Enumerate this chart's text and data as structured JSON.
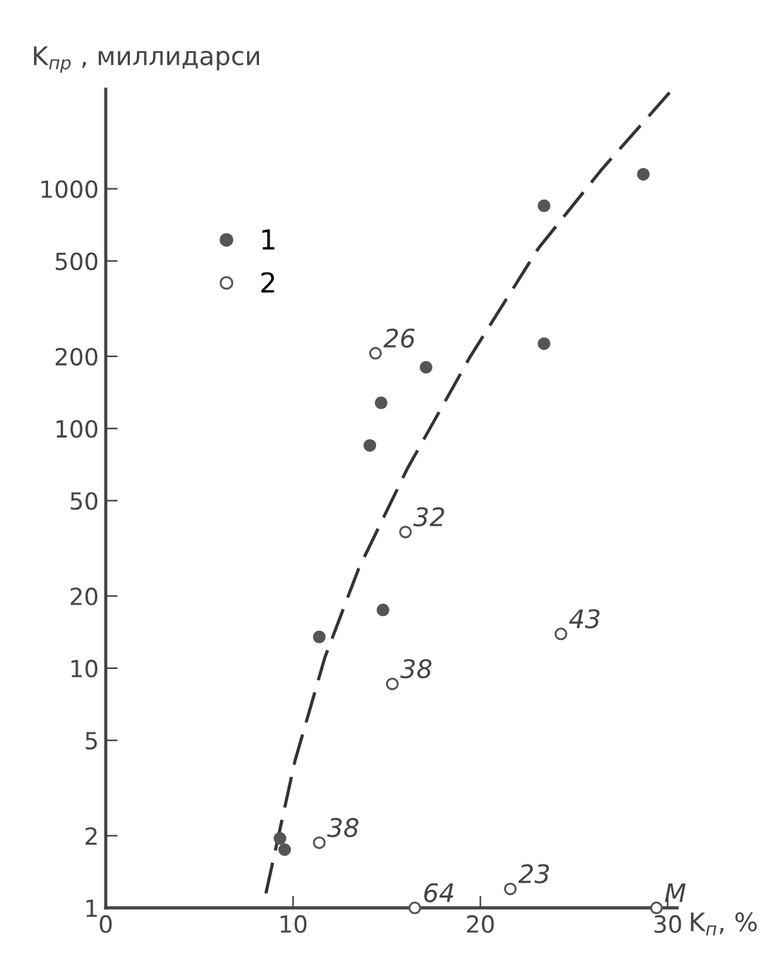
{
  "chart_data": {
    "type": "scatter",
    "xlabel": "K$_{п}$, %",
    "ylabel": "K$_{пр}$ , миллидарси",
    "log": "y",
    "xlim": [
      0,
      30.5
    ],
    "xticks": [
      0,
      10,
      20,
      30
    ],
    "ylim": [
      1,
      2600
    ],
    "yticks": [
      1,
      2,
      5,
      10,
      20,
      50,
      100,
      200,
      500,
      1000
    ],
    "grid": false,
    "legend": "top left",
    "series": [
      {
        "name": "1",
        "marker": "circle",
        "color": "#555555",
        "x": [
          28.7,
          23.4,
          23.4,
          17.1,
          14.7,
          14.1,
          14.8,
          11.4,
          9.3,
          9.55
        ],
        "values": [
          1150,
          850,
          226,
          180,
          128,
          85,
          17.5,
          13.5,
          1.95,
          1.75
        ]
      },
      {
        "name": "2",
        "marker": "circle",
        "color": "#ffffff",
        "x": [
          14.4,
          16.0,
          24.3,
          15.3,
          11.4,
          21.6,
          16.5,
          29.4
        ],
        "values": [
          206,
          37,
          13.9,
          8.6,
          1.87,
          1.2,
          1,
          1
        ]
      },
      {
        "type": "line",
        "marker": "none",
        "color": "#333333",
        "line_style": "dashed",
        "x": [
          8.55,
          10.1,
          11.7,
          13.5,
          16.1,
          19.45,
          23.1,
          26.5,
          30.1
        ],
        "values": [
          1.15,
          4.1,
          11.1,
          26,
          68,
          199,
          565,
          1210,
          2520
        ]
      }
    ],
    "annotations": [
      {
        "text": "26",
        "x": 14.4,
        "y": 206
      },
      {
        "text": "32",
        "x": 16.0,
        "y": 37
      },
      {
        "text": "43",
        "x": 24.3,
        "y": 13.9
      },
      {
        "text": "38",
        "x": 15.3,
        "y": 8.6
      },
      {
        "text": "38",
        "x": 11.4,
        "y": 1.87
      },
      {
        "text": "23",
        "x": 21.6,
        "y": 1.2
      },
      {
        "text": "64",
        "x": 16.5,
        "y": 1
      },
      {
        "text": "M",
        "x": 29.4,
        "y": 1
      }
    ]
  }
}
